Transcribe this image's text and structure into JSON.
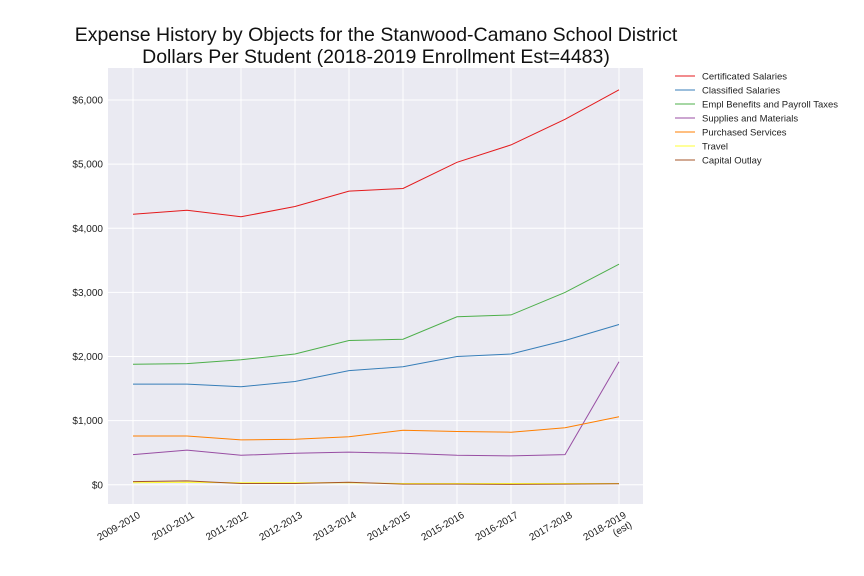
{
  "chart_data": {
    "type": "line",
    "title": "Expense History by Objects for the Stanwood-Camano School District",
    "subtitle": "Dollars Per Student (2018-2019 Enrollment Est=4483)",
    "xlabel": "",
    "ylabel": "",
    "categories": [
      "2009-2010",
      "2010-2011",
      "2011-2012",
      "2012-2013",
      "2013-2014",
      "2014-2015",
      "2015-2016",
      "2016-2017",
      "2017-2018",
      "2018-2019 (est)"
    ],
    "category_lines": [
      [
        "2009-2010"
      ],
      [
        "2010-2011"
      ],
      [
        "2011-2012"
      ],
      [
        "2012-2013"
      ],
      [
        "2013-2014"
      ],
      [
        "2014-2015"
      ],
      [
        "2015-2016"
      ],
      [
        "2016-2017"
      ],
      [
        "2017-2018"
      ],
      [
        "2018-2019",
        "(est)"
      ]
    ],
    "ylim": [
      -300,
      6500
    ],
    "yticks": [
      0,
      1000,
      2000,
      3000,
      4000,
      5000,
      6000
    ],
    "ytick_labels": [
      "$0",
      "$1,000",
      "$2,000",
      "$3,000",
      "$4,000",
      "$5,000",
      "$6,000"
    ],
    "grid": true,
    "legend_position": "outside-right",
    "series": [
      {
        "name": "Certificated Salaries",
        "color": "#e41a1c",
        "values": [
          4220,
          4280,
          4180,
          4340,
          4580,
          4620,
          5030,
          5300,
          5700,
          6160
        ]
      },
      {
        "name": "Classified Salaries",
        "color": "#377eb8",
        "values": [
          1570,
          1570,
          1530,
          1610,
          1780,
          1840,
          2000,
          2040,
          2250,
          2500
        ]
      },
      {
        "name": "Empl Benefits and Payroll Taxes",
        "color": "#4daf4a",
        "values": [
          1880,
          1890,
          1950,
          2040,
          2250,
          2270,
          2620,
          2650,
          3000,
          3440
        ]
      },
      {
        "name": "Supplies and Materials",
        "color": "#984ea3",
        "values": [
          470,
          540,
          460,
          490,
          510,
          490,
          460,
          450,
          470,
          1920
        ]
      },
      {
        "name": "Purchased Services",
        "color": "#ff7f00",
        "values": [
          760,
          760,
          700,
          710,
          750,
          850,
          830,
          820,
          890,
          1060
        ]
      },
      {
        "name": "Travel",
        "color": "#ffff33",
        "values": [
          30,
          40,
          30,
          30,
          30,
          20,
          20,
          20,
          20,
          20
        ]
      },
      {
        "name": "Capital Outlay",
        "color": "#a65628",
        "values": [
          50,
          60,
          20,
          20,
          40,
          10,
          10,
          5,
          10,
          15
        ]
      }
    ]
  }
}
